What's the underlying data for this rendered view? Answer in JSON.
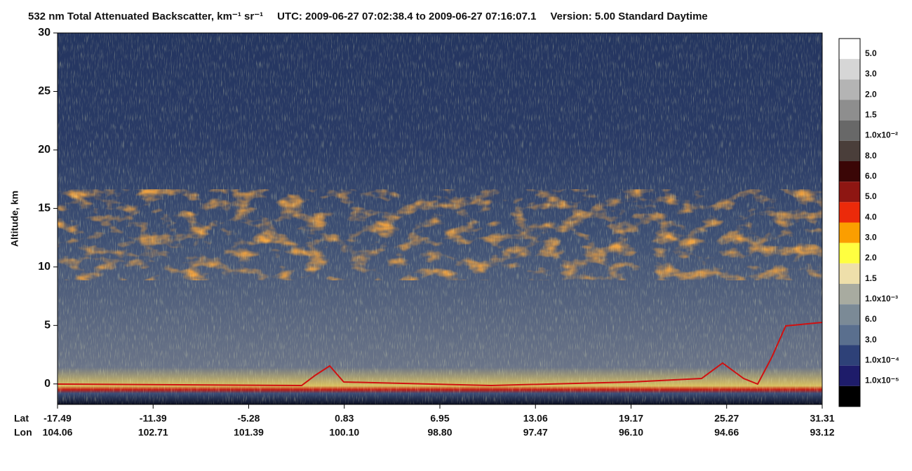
{
  "chart_data": {
    "type": "heatmap",
    "title": "532 nm Total Attenuated Backscatter, km⁻¹ sr⁻¹",
    "subtitle": "UTC:  2009-06-27 07:02:38.4  to  2009-06-27 07:16:07.1",
    "version": "Version: 5.00  Standard  Daytime",
    "y_label": "Altitude, km",
    "ylim": [
      -1.75,
      30
    ],
    "yticks": [
      0,
      5,
      10,
      15,
      20,
      25,
      30
    ],
    "x_row_names": [
      "Lat",
      "Lon"
    ],
    "lat_labels": [
      "-17.49",
      "-11.39",
      "-5.28",
      "0.83",
      "6.95",
      "13.06",
      "19.17",
      "25.27",
      "31.31"
    ],
    "lon_labels": [
      "104.06",
      "102.71",
      "101.39",
      "100.10",
      "98.80",
      "97.47",
      "96.10",
      "94.66",
      "93.12"
    ],
    "colorbar": {
      "colors": [
        "#ffffff",
        "#d6d6d6",
        "#b4b4b4",
        "#8e8e8e",
        "#686868",
        "#4a3e3a",
        "#3a0606",
        "#8e1612",
        "#ec2a0a",
        "#fb9e00",
        "#ffff40",
        "#eedfaa",
        "#a8aba0",
        "#7b8a96",
        "#5a6f8e",
        "#2e4178",
        "#1e1c6a",
        "#000000"
      ],
      "labels": [
        "5.0",
        "3.0",
        "2.0",
        "1.5",
        "1.0x10⁻²",
        "8.0",
        "6.0",
        "5.0",
        "4.0",
        "3.0",
        "2.0",
        "1.5",
        "1.0x10⁻³",
        "6.0",
        "3.0",
        "1.0x10⁻⁴",
        "1.0x10⁻⁵"
      ]
    }
  }
}
